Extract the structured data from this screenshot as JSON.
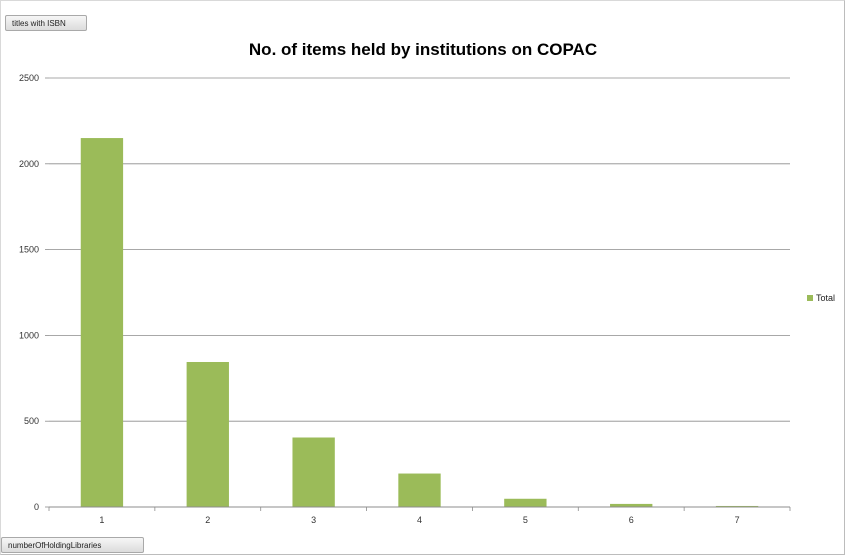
{
  "field_buttons": {
    "values": "titles with ISBN",
    "axis": "numberOfHoldingLibraries"
  },
  "chart_data": {
    "type": "bar",
    "title": "No. of items held by institutions on COPAC",
    "xlabel": "",
    "ylabel": "",
    "categories": [
      "1",
      "2",
      "3",
      "4",
      "5",
      "6",
      "7"
    ],
    "series": [
      {
        "name": "Total",
        "values": [
          2150,
          845,
          405,
          195,
          48,
          18,
          6
        ],
        "color": "#9bbb59"
      }
    ],
    "ylim": [
      0,
      2500
    ],
    "yticks": [
      "0",
      "500",
      "1000",
      "1500",
      "2000",
      "2500"
    ],
    "grid": true,
    "legend_position": "right"
  }
}
